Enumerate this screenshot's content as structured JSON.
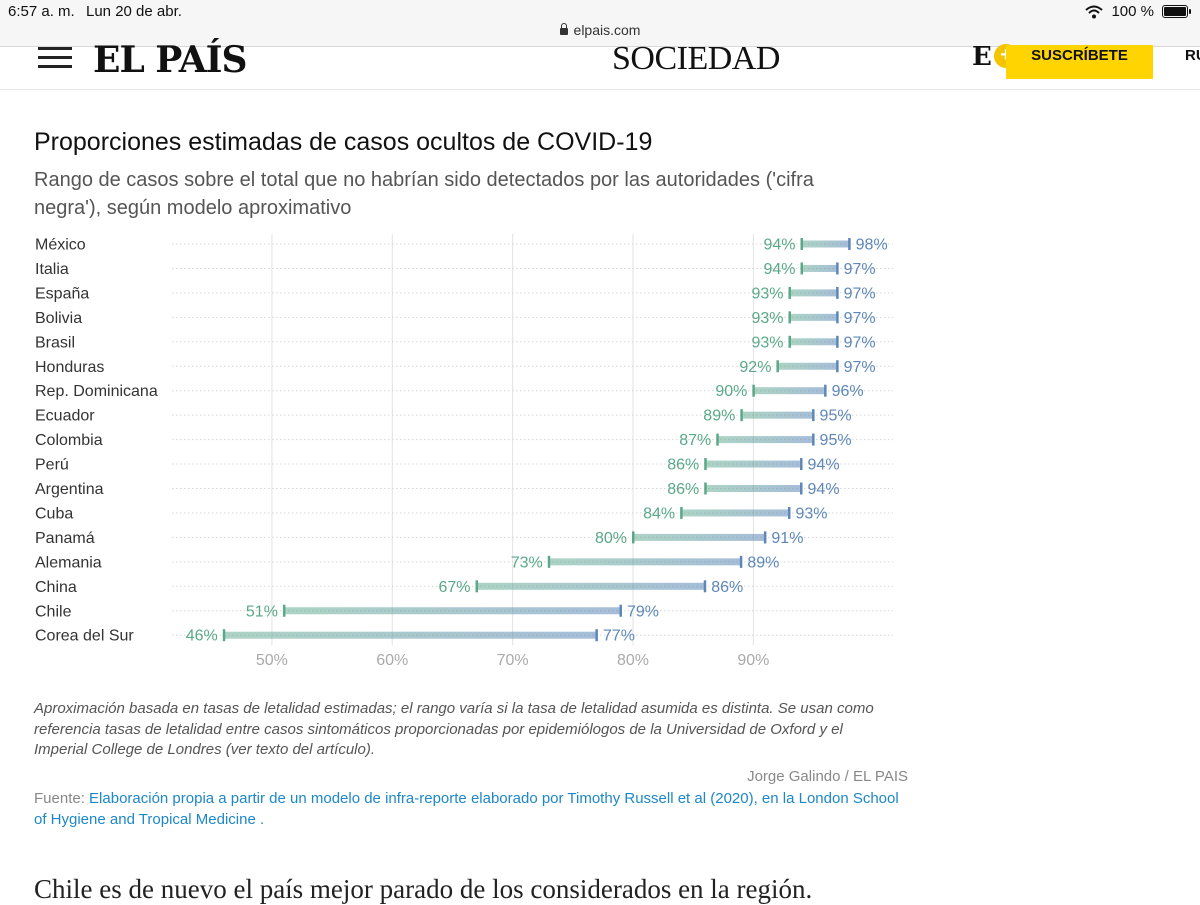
{
  "status_bar": {
    "time": "6:57 a. m.",
    "date": "Lun 20 de abr.",
    "battery": "100 %"
  },
  "url_bar": {
    "domain": "elpais.com"
  },
  "header": {
    "logo": "EL PAÍS",
    "section": "SOCIEDAD",
    "e_logo": "E",
    "plus": "+",
    "subscribe_label": "SUSCRÍBETE",
    "cut_text": "RU"
  },
  "chart": {
    "title": "Proporciones estimadas de casos ocultos de COVID-19",
    "subtitle": "Rango de casos sobre el total que no habrían sido detectados por las autoridades ('cifra negra'), según modelo aproximativo"
  },
  "chart_data": {
    "type": "dumbbell",
    "title": "Proporciones estimadas de casos ocultos de COVID-19",
    "subtitle": "Rango de casos sobre el total que no habrían sido detectados por las autoridades ('cifra negra'), según modelo aproximativo",
    "categories": [
      "México",
      "Italia",
      "España",
      "Bolivia",
      "Brasil",
      "Honduras",
      "Rep. Dominicana",
      "Ecuador",
      "Colombia",
      "Perú",
      "Argentina",
      "Cuba",
      "Panamá",
      "Alemania",
      "China",
      "Chile",
      "Corea del Sur"
    ],
    "low": [
      94,
      94,
      93,
      93,
      93,
      92,
      90,
      89,
      87,
      86,
      86,
      84,
      80,
      73,
      67,
      51,
      46
    ],
    "high": [
      98,
      97,
      97,
      97,
      97,
      97,
      96,
      95,
      95,
      94,
      94,
      93,
      91,
      89,
      86,
      79,
      77
    ],
    "low_labels": [
      "94%",
      "94%",
      "93%",
      "93%",
      "93%",
      "92%",
      "90%",
      "89%",
      "87%",
      "86%",
      "86%",
      "84%",
      "80%",
      "73%",
      "67%",
      "51%",
      "46%"
    ],
    "high_labels": [
      "98%",
      "97%",
      "97%",
      "97%",
      "97%",
      "97%",
      "96%",
      "95%",
      "95%",
      "94%",
      "94%",
      "93%",
      "91%",
      "89%",
      "86%",
      "79%",
      "77%"
    ],
    "x_ticks": [
      50,
      60,
      70,
      80,
      90
    ],
    "x_tick_labels": [
      "50%",
      "60%",
      "70%",
      "80%",
      "90%"
    ],
    "xlim": [
      41.7,
      101.6
    ],
    "grid": true,
    "colors": {
      "low": "#5aa88a",
      "high": "#5d87b8",
      "grid": "#e2e2e2",
      "tick_text": "#aaaaaa"
    }
  },
  "footer": {
    "note": "Aproximación basada en tasas de letalidad estimadas; el rango varía si la tasa de letalidad asumida es distinta. Se usan como referencia tasas de letalidad entre casos sintomáticos proporcionadas por epidemiólogos de la Universidad de Oxford y el Imperial College de Londres (ver texto del artículo).",
    "byline": "Jorge Galindo / EL PAIS",
    "source_label": "Fuente:",
    "source_link": "Elaboración propia a partir de un modelo de infra-reporte elaborado por Timothy Russell et al (2020), en la London School of Hygiene and Tropical Medicine ."
  },
  "article": {
    "first_line": "Chile es de nuevo el país mejor parado de los considerados en la región."
  }
}
